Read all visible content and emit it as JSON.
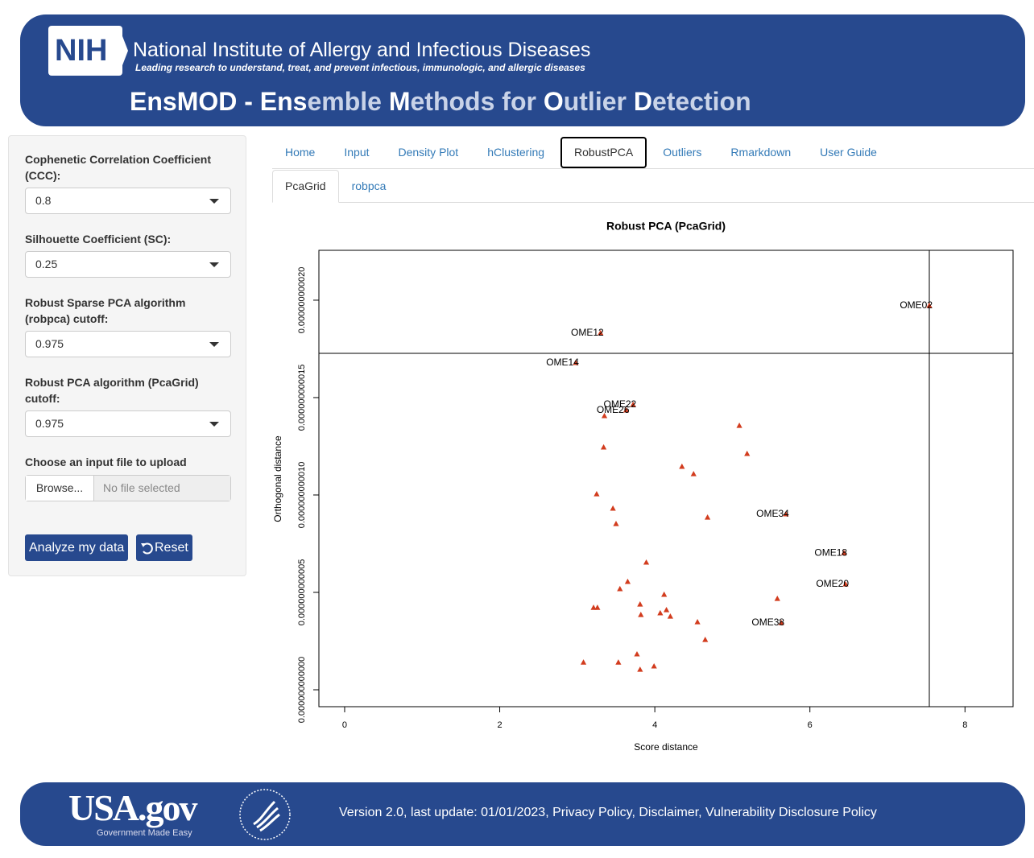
{
  "header": {
    "logo": "NIH",
    "org": "National Institute of Allergy and Infectious Diseases",
    "tagline": "Leading research to understand, treat, and prevent infectious, immunologic, and allergic diseases",
    "title_parts": [
      {
        "text": "EnsMOD - Ens",
        "bold": true
      },
      {
        "text": "emble ",
        "bold": false
      },
      {
        "text": "M",
        "bold": true
      },
      {
        "text": "ethods for ",
        "bold": false
      },
      {
        "text": "O",
        "bold": true
      },
      {
        "text": "utlier ",
        "bold": false
      },
      {
        "text": "D",
        "bold": true
      },
      {
        "text": "etection",
        "bold": false
      }
    ]
  },
  "sidebar": {
    "fields": [
      {
        "label": "Cophenetic Correlation Coefficient (CCC):",
        "value": "0.8"
      },
      {
        "label": "Silhouette Coefficient (SC):",
        "value": "0.25"
      },
      {
        "label": "Robust Sparse PCA algorithm (robpca) cutoff:",
        "value": "0.975"
      },
      {
        "label": "Robust PCA algorithm (PcaGrid) cutoff:",
        "value": "0.975"
      }
    ],
    "file_label": "Choose an input file to upload",
    "browse": "Browse...",
    "file_placeholder": "No file selected",
    "buttons": [
      "Analyze my data",
      "Reset"
    ]
  },
  "tabs": {
    "items": [
      "Home",
      "Input",
      "Density Plot",
      "hClustering",
      "RobustPCA",
      "Outliers",
      "Rmarkdown",
      "User Guide"
    ],
    "active": 4
  },
  "subtabs": {
    "items": [
      "PcaGrid",
      "robpca"
    ],
    "active": 0
  },
  "chart_data": {
    "type": "scatter",
    "title": "Robust PCA (PcaGrid)",
    "xlabel": "Score distance",
    "ylabel": "Orthogonal distance",
    "color": "#d23c1e",
    "marker": "triangle",
    "xlim": [
      -0.332,
      8.62
    ],
    "ylim": [
      -8.68e-13,
      2.256e-11
    ],
    "xticks": [
      0,
      2,
      4,
      6,
      8
    ],
    "yticks": [
      {
        "value": 0,
        "label": "0.000000000000"
      },
      {
        "value": 5e-12,
        "label": "0.000000000005"
      },
      {
        "value": 1e-11,
        "label": "0.000000000010"
      },
      {
        "value": 1.5e-11,
        "label": "0.000000000015"
      },
      {
        "value": 2e-11,
        "label": "0.000000000020"
      }
    ],
    "vlines": [
      7.54
    ],
    "hlines": [
      1.727e-11
    ],
    "x": [
      7.54,
      3.3,
      2.98,
      3.72,
      3.63,
      3.35,
      5.09,
      3.34,
      5.19,
      4.35,
      4.5,
      3.25,
      3.46,
      5.69,
      4.68,
      3.5,
      6.44,
      3.89,
      3.65,
      6.46,
      3.55,
      4.12,
      5.58,
      3.81,
      3.21,
      3.26,
      4.15,
      4.07,
      3.82,
      4.2,
      4.55,
      5.63,
      4.65,
      3.77,
      3.53,
      3.08,
      3.99,
      3.81
    ],
    "y": [
      1.971e-11,
      1.831e-11,
      1.678e-11,
      1.463e-11,
      1.434e-11,
      1.405e-11,
      1.355e-11,
      1.244e-11,
      1.211e-11,
      1.145e-11,
      1.107e-11,
      1.004e-11,
      9.3e-12,
      9.01e-12,
      8.84e-12,
      8.51e-12,
      7.02e-12,
      6.53e-12,
      5.54e-12,
      5.41e-12,
      5.17e-12,
      4.88e-12,
      4.67e-12,
      4.38e-12,
      4.21e-12,
      4.21e-12,
      4.09e-12,
      3.93e-12,
      3.84e-12,
      3.76e-12,
      3.47e-12,
      3.43e-12,
      2.56e-12,
      1.82e-12,
      1.4e-12,
      1.4e-12,
      1.2e-12,
      1.03e-12
    ],
    "labels": [
      "OME02",
      "OME12",
      "OME14",
      "OME22",
      "OME26",
      null,
      null,
      null,
      null,
      null,
      null,
      null,
      null,
      "OME34",
      null,
      null,
      "OME18",
      null,
      null,
      "OME20",
      null,
      null,
      null,
      null,
      null,
      null,
      null,
      null,
      null,
      null,
      null,
      "OME38",
      null,
      null,
      null,
      null,
      null,
      null
    ]
  },
  "footer": {
    "usa_logo": "USA.gov",
    "usa_tagline": [
      "Government",
      "Made Easy"
    ],
    "text": "Version 2.0, last update: 01/01/2023, Privacy Policy, Disclaimer, Vulnerability Disclosure Policy"
  }
}
